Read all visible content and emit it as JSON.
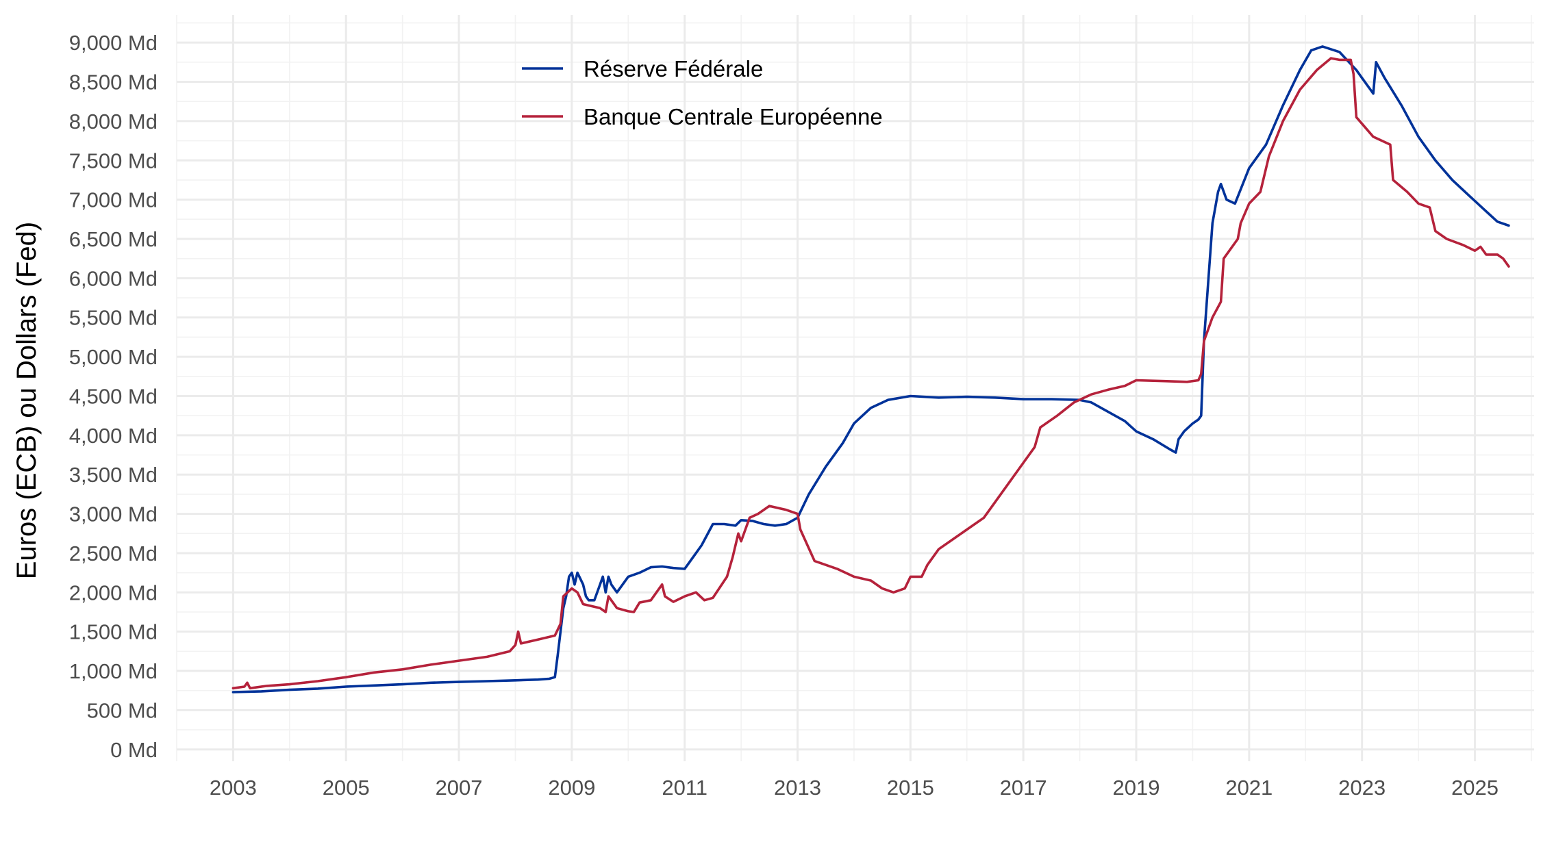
{
  "chart_data": {
    "type": "line",
    "title": "",
    "xlabel": "",
    "ylabel": "Euros (ECB) ou Dollars (Fed)",
    "grid": true,
    "legend": {
      "position": "top-center"
    },
    "xlim": [
      2002.0,
      2026.05
    ],
    "ylim": [
      -150,
      9350
    ],
    "x_ticks": [
      2003,
      2005,
      2007,
      2009,
      2011,
      2013,
      2015,
      2017,
      2019,
      2021,
      2023,
      2025
    ],
    "x_tick_labels": [
      "2003",
      "2005",
      "2007",
      "2009",
      "2011",
      "2013",
      "2015",
      "2017",
      "2019",
      "2021",
      "2023",
      "2025"
    ],
    "y_ticks": [
      0,
      500,
      1000,
      1500,
      2000,
      2500,
      3000,
      3500,
      4000,
      4500,
      5000,
      5500,
      6000,
      6500,
      7000,
      7500,
      8000,
      8500,
      9000
    ],
    "y_tick_labels": [
      "0 Md",
      "500 Md",
      "1,000 Md",
      "1,500 Md",
      "2,000 Md",
      "2,500 Md",
      "3,000 Md",
      "3,500 Md",
      "4,000 Md",
      "4,500 Md",
      "5,000 Md",
      "5,500 Md",
      "6,000 Md",
      "6,500 Md",
      "7,000 Md",
      "7,500 Md",
      "8,000 Md",
      "8,500 Md",
      "9,000 Md"
    ],
    "series": [
      {
        "name": "Réserve Fédérale",
        "color": "#003299",
        "points": [
          [
            2003.0,
            730
          ],
          [
            2003.5,
            740
          ],
          [
            2004.0,
            760
          ],
          [
            2004.5,
            775
          ],
          [
            2005.0,
            800
          ],
          [
            2005.5,
            815
          ],
          [
            2006.0,
            830
          ],
          [
            2006.5,
            850
          ],
          [
            2007.0,
            860
          ],
          [
            2007.5,
            870
          ],
          [
            2008.0,
            880
          ],
          [
            2008.4,
            890
          ],
          [
            2008.6,
            900
          ],
          [
            2008.7,
            920
          ],
          [
            2008.75,
            1200
          ],
          [
            2008.8,
            1500
          ],
          [
            2008.85,
            1800
          ],
          [
            2008.9,
            1950
          ],
          [
            2008.95,
            2200
          ],
          [
            2009.0,
            2250
          ],
          [
            2009.05,
            2100
          ],
          [
            2009.1,
            2250
          ],
          [
            2009.2,
            2100
          ],
          [
            2009.25,
            1950
          ],
          [
            2009.3,
            1900
          ],
          [
            2009.4,
            1900
          ],
          [
            2009.5,
            2100
          ],
          [
            2009.55,
            2200
          ],
          [
            2009.6,
            2000
          ],
          [
            2009.65,
            2200
          ],
          [
            2009.7,
            2100
          ],
          [
            2009.8,
            2000
          ],
          [
            2009.9,
            2100
          ],
          [
            2010.0,
            2200
          ],
          [
            2010.2,
            2250
          ],
          [
            2010.4,
            2320
          ],
          [
            2010.6,
            2330
          ],
          [
            2010.8,
            2310
          ],
          [
            2011.0,
            2300
          ],
          [
            2011.15,
            2450
          ],
          [
            2011.3,
            2600
          ],
          [
            2011.5,
            2870
          ],
          [
            2011.7,
            2870
          ],
          [
            2011.9,
            2850
          ],
          [
            2012.0,
            2920
          ],
          [
            2012.2,
            2910
          ],
          [
            2012.4,
            2870
          ],
          [
            2012.6,
            2850
          ],
          [
            2012.8,
            2870
          ],
          [
            2013.0,
            2950
          ],
          [
            2013.2,
            3250
          ],
          [
            2013.5,
            3600
          ],
          [
            2013.8,
            3900
          ],
          [
            2014.0,
            4150
          ],
          [
            2014.3,
            4350
          ],
          [
            2014.6,
            4450
          ],
          [
            2015.0,
            4500
          ],
          [
            2015.5,
            4480
          ],
          [
            2016.0,
            4490
          ],
          [
            2016.5,
            4480
          ],
          [
            2017.0,
            4460
          ],
          [
            2017.5,
            4460
          ],
          [
            2018.0,
            4450
          ],
          [
            2018.2,
            4420
          ],
          [
            2018.5,
            4300
          ],
          [
            2018.8,
            4180
          ],
          [
            2019.0,
            4050
          ],
          [
            2019.3,
            3950
          ],
          [
            2019.6,
            3820
          ],
          [
            2019.7,
            3780
          ],
          [
            2019.75,
            3950
          ],
          [
            2019.85,
            4050
          ],
          [
            2020.0,
            4150
          ],
          [
            2020.1,
            4200
          ],
          [
            2020.15,
            4250
          ],
          [
            2020.2,
            5200
          ],
          [
            2020.28,
            6000
          ],
          [
            2020.35,
            6700
          ],
          [
            2020.45,
            7100
          ],
          [
            2020.5,
            7200
          ],
          [
            2020.6,
            7000
          ],
          [
            2020.75,
            6950
          ],
          [
            2021.0,
            7400
          ],
          [
            2021.3,
            7700
          ],
          [
            2021.6,
            8200
          ],
          [
            2021.9,
            8650
          ],
          [
            2022.1,
            8900
          ],
          [
            2022.3,
            8950
          ],
          [
            2022.6,
            8880
          ],
          [
            2022.9,
            8650
          ],
          [
            2023.0,
            8550
          ],
          [
            2023.15,
            8400
          ],
          [
            2023.2,
            8350
          ],
          [
            2023.25,
            8750
          ],
          [
            2023.4,
            8550
          ],
          [
            2023.7,
            8200
          ],
          [
            2024.0,
            7800
          ],
          [
            2024.3,
            7500
          ],
          [
            2024.6,
            7250
          ],
          [
            2024.9,
            7050
          ],
          [
            2025.2,
            6850
          ],
          [
            2025.4,
            6720
          ],
          [
            2025.6,
            6670
          ]
        ]
      },
      {
        "name": "Banque Centrale Européenne",
        "color": "#b5223b",
        "points": [
          [
            2003.0,
            780
          ],
          [
            2003.2,
            800
          ],
          [
            2003.25,
            850
          ],
          [
            2003.3,
            780
          ],
          [
            2003.6,
            810
          ],
          [
            2004.0,
            830
          ],
          [
            2004.5,
            870
          ],
          [
            2005.0,
            920
          ],
          [
            2005.5,
            980
          ],
          [
            2006.0,
            1020
          ],
          [
            2006.5,
            1080
          ],
          [
            2007.0,
            1130
          ],
          [
            2007.5,
            1180
          ],
          [
            2007.9,
            1250
          ],
          [
            2008.0,
            1330
          ],
          [
            2008.05,
            1500
          ],
          [
            2008.1,
            1350
          ],
          [
            2008.4,
            1400
          ],
          [
            2008.7,
            1450
          ],
          [
            2008.8,
            1600
          ],
          [
            2008.85,
            1950
          ],
          [
            2009.0,
            2050
          ],
          [
            2009.1,
            2000
          ],
          [
            2009.2,
            1850
          ],
          [
            2009.5,
            1800
          ],
          [
            2009.6,
            1750
          ],
          [
            2009.65,
            1950
          ],
          [
            2009.8,
            1800
          ],
          [
            2010.0,
            1760
          ],
          [
            2010.1,
            1750
          ],
          [
            2010.2,
            1870
          ],
          [
            2010.4,
            1900
          ],
          [
            2010.5,
            2000
          ],
          [
            2010.6,
            2100
          ],
          [
            2010.65,
            1950
          ],
          [
            2010.8,
            1880
          ],
          [
            2011.0,
            1950
          ],
          [
            2011.2,
            2000
          ],
          [
            2011.35,
            1900
          ],
          [
            2011.5,
            1930
          ],
          [
            2011.75,
            2200
          ],
          [
            2011.85,
            2450
          ],
          [
            2011.95,
            2750
          ],
          [
            2012.0,
            2650
          ],
          [
            2012.15,
            2950
          ],
          [
            2012.3,
            3000
          ],
          [
            2012.5,
            3100
          ],
          [
            2012.8,
            3050
          ],
          [
            2013.0,
            3000
          ],
          [
            2013.05,
            2800
          ],
          [
            2013.3,
            2400
          ],
          [
            2013.7,
            2300
          ],
          [
            2014.0,
            2200
          ],
          [
            2014.3,
            2150
          ],
          [
            2014.5,
            2050
          ],
          [
            2014.7,
            2000
          ],
          [
            2014.9,
            2050
          ],
          [
            2015.0,
            2200
          ],
          [
            2015.2,
            2200
          ],
          [
            2015.3,
            2350
          ],
          [
            2015.5,
            2550
          ],
          [
            2015.8,
            2700
          ],
          [
            2016.0,
            2800
          ],
          [
            2016.3,
            2950
          ],
          [
            2016.6,
            3250
          ],
          [
            2017.0,
            3650
          ],
          [
            2017.2,
            3850
          ],
          [
            2017.3,
            4100
          ],
          [
            2017.6,
            4250
          ],
          [
            2017.9,
            4420
          ],
          [
            2018.2,
            4520
          ],
          [
            2018.5,
            4580
          ],
          [
            2018.8,
            4630
          ],
          [
            2019.0,
            4700
          ],
          [
            2019.5,
            4690
          ],
          [
            2019.9,
            4680
          ],
          [
            2020.1,
            4700
          ],
          [
            2020.15,
            4780
          ],
          [
            2020.2,
            5200
          ],
          [
            2020.35,
            5500
          ],
          [
            2020.5,
            5700
          ],
          [
            2020.55,
            6250
          ],
          [
            2020.8,
            6500
          ],
          [
            2020.85,
            6700
          ],
          [
            2021.0,
            6950
          ],
          [
            2021.2,
            7100
          ],
          [
            2021.35,
            7550
          ],
          [
            2021.6,
            8000
          ],
          [
            2021.9,
            8400
          ],
          [
            2022.2,
            8650
          ],
          [
            2022.45,
            8800
          ],
          [
            2022.6,
            8780
          ],
          [
            2022.8,
            8780
          ],
          [
            2022.85,
            8600
          ],
          [
            2022.9,
            8050
          ],
          [
            2023.2,
            7800
          ],
          [
            2023.5,
            7700
          ],
          [
            2023.55,
            7250
          ],
          [
            2023.8,
            7100
          ],
          [
            2024.0,
            6950
          ],
          [
            2024.2,
            6900
          ],
          [
            2024.3,
            6600
          ],
          [
            2024.5,
            6500
          ],
          [
            2024.8,
            6420
          ],
          [
            2025.0,
            6350
          ],
          [
            2025.1,
            6400
          ],
          [
            2025.2,
            6300
          ],
          [
            2025.4,
            6300
          ],
          [
            2025.5,
            6250
          ],
          [
            2025.6,
            6150
          ]
        ]
      }
    ]
  }
}
